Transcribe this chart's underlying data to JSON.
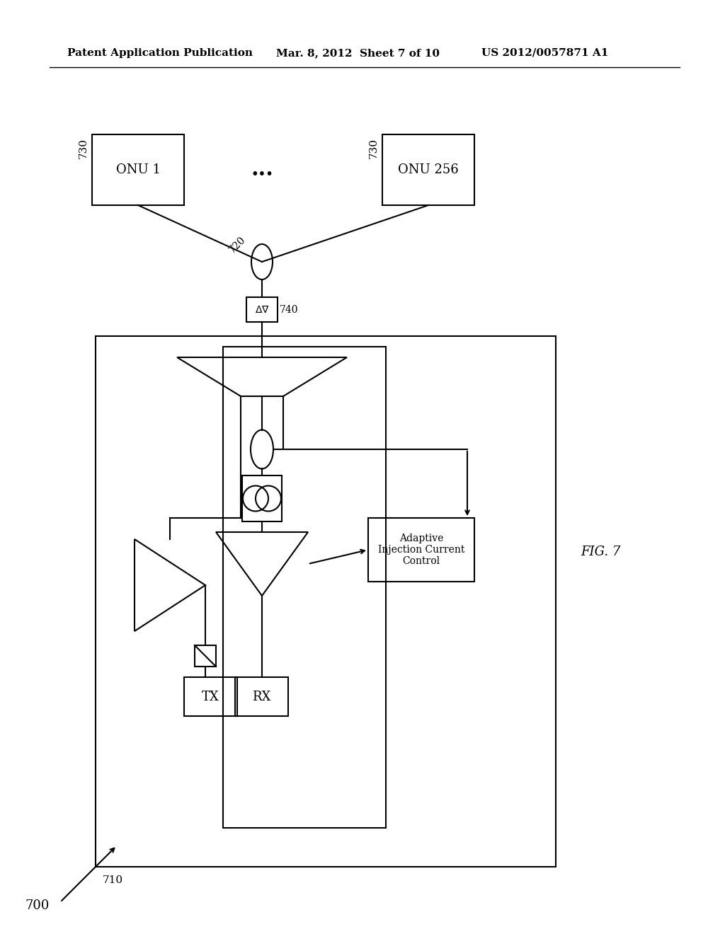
{
  "bg_color": "#ffffff",
  "header_left": "Patent Application Publication",
  "header_mid": "Mar. 8, 2012  Sheet 7 of 10",
  "header_right": "US 2012/0057871 A1",
  "fig_label": "FIG. 7",
  "onu1_label": "ONU 1",
  "onu256_label": "ONU 256",
  "onu_label_730": "730",
  "onu_label_730b": "730",
  "splitter_label": "720",
  "attenuator_label": "740",
  "attenuator_symbol": "Δ∇",
  "tx_label": "TX",
  "rx_label": "RX",
  "aic_label": "Adaptive\nInjection Current\nControl",
  "box700_label": "700",
  "box710_label": "710",
  "ellipsis": "..."
}
